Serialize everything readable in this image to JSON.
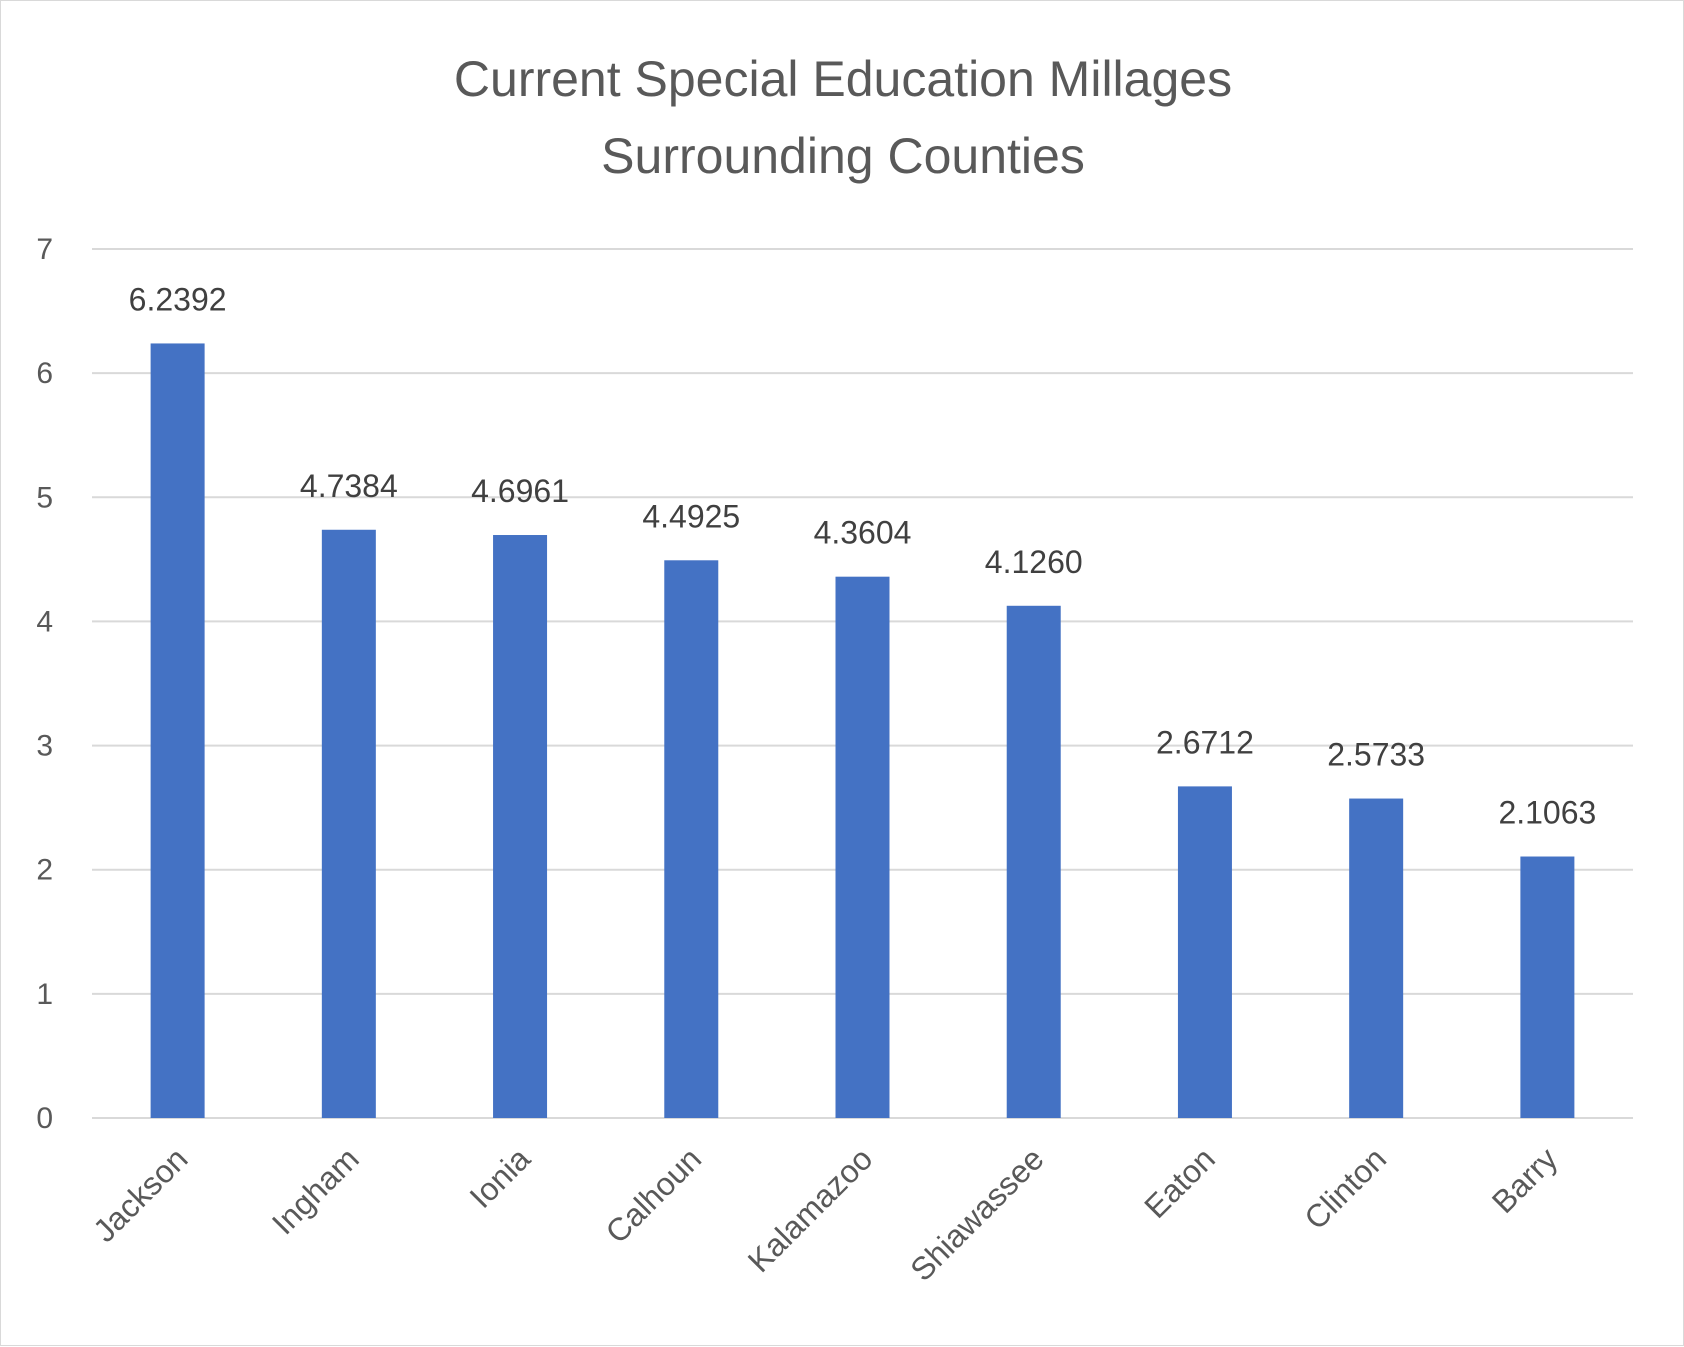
{
  "chart_data": {
    "type": "bar",
    "title": [
      "Current Special Education Millages",
      "Surrounding Counties"
    ],
    "categories": [
      "Jackson",
      "Ingham",
      "Ionia",
      "Calhoun",
      "Kalamazoo",
      "Shiawassee",
      "Eaton",
      "Clinton",
      "Barry"
    ],
    "values": [
      6.2392,
      4.7384,
      4.6961,
      4.4925,
      4.3604,
      4.126,
      2.6712,
      2.5733,
      2.1063
    ],
    "data_labels": [
      "6.2392",
      "4.7384",
      "4.6961",
      "4.4925",
      "4.3604",
      "4.1260",
      "2.6712",
      "2.5733",
      "2.1063"
    ],
    "ylim": [
      0,
      7
    ],
    "yticks": [
      0,
      1,
      2,
      3,
      4,
      5,
      6,
      7
    ],
    "xlabel": "",
    "ylabel": "",
    "grid": true,
    "legend": "none",
    "bar_color": "#4472C4",
    "grid_color": "#d9d9d9"
  }
}
